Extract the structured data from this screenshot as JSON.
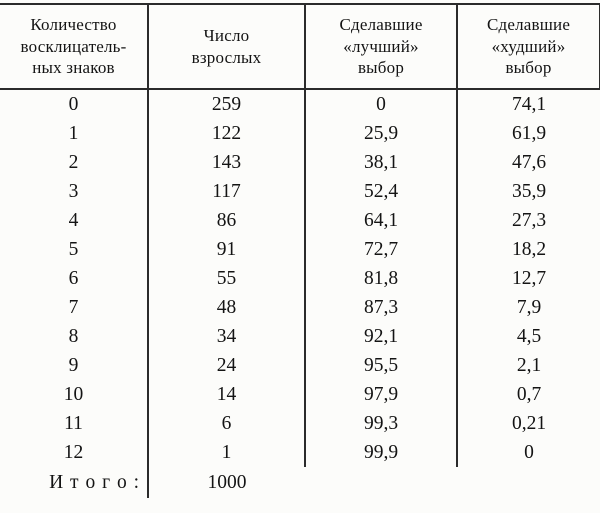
{
  "table": {
    "columns": [
      {
        "header": "Количество\nвосклицатель-\nных знаков"
      },
      {
        "header": "Число\nвзрослых"
      },
      {
        "header": "Сделавшие\n«лучший»\nвыбор"
      },
      {
        "header": "Сделавшие\n«худший»\nвыбор"
      }
    ],
    "rows": [
      [
        "0",
        "259",
        "0",
        "74,1"
      ],
      [
        "1",
        "122",
        "25,9",
        "61,9"
      ],
      [
        "2",
        "143",
        "38,1",
        "47,6"
      ],
      [
        "3",
        "117",
        "52,4",
        "35,9"
      ],
      [
        "4",
        "86",
        "64,1",
        "27,3"
      ],
      [
        "5",
        "91",
        "72,7",
        "18,2"
      ],
      [
        "6",
        "55",
        "81,8",
        "12,7"
      ],
      [
        "7",
        "48",
        "87,3",
        "7,9"
      ],
      [
        "8",
        "34",
        "92,1",
        "4,5"
      ],
      [
        "9",
        "24",
        "95,5",
        "2,1"
      ],
      [
        "10",
        "14",
        "97,9",
        "0,7"
      ],
      [
        "11",
        "6",
        "99,3",
        "0,21"
      ],
      [
        "12",
        "1",
        "99,9",
        "0"
      ]
    ],
    "total": {
      "label": "И т о г о :",
      "value": "1000"
    }
  },
  "colors": {
    "background": "#fcfcfa",
    "text": "#141414",
    "border": "#2b2b2b"
  }
}
